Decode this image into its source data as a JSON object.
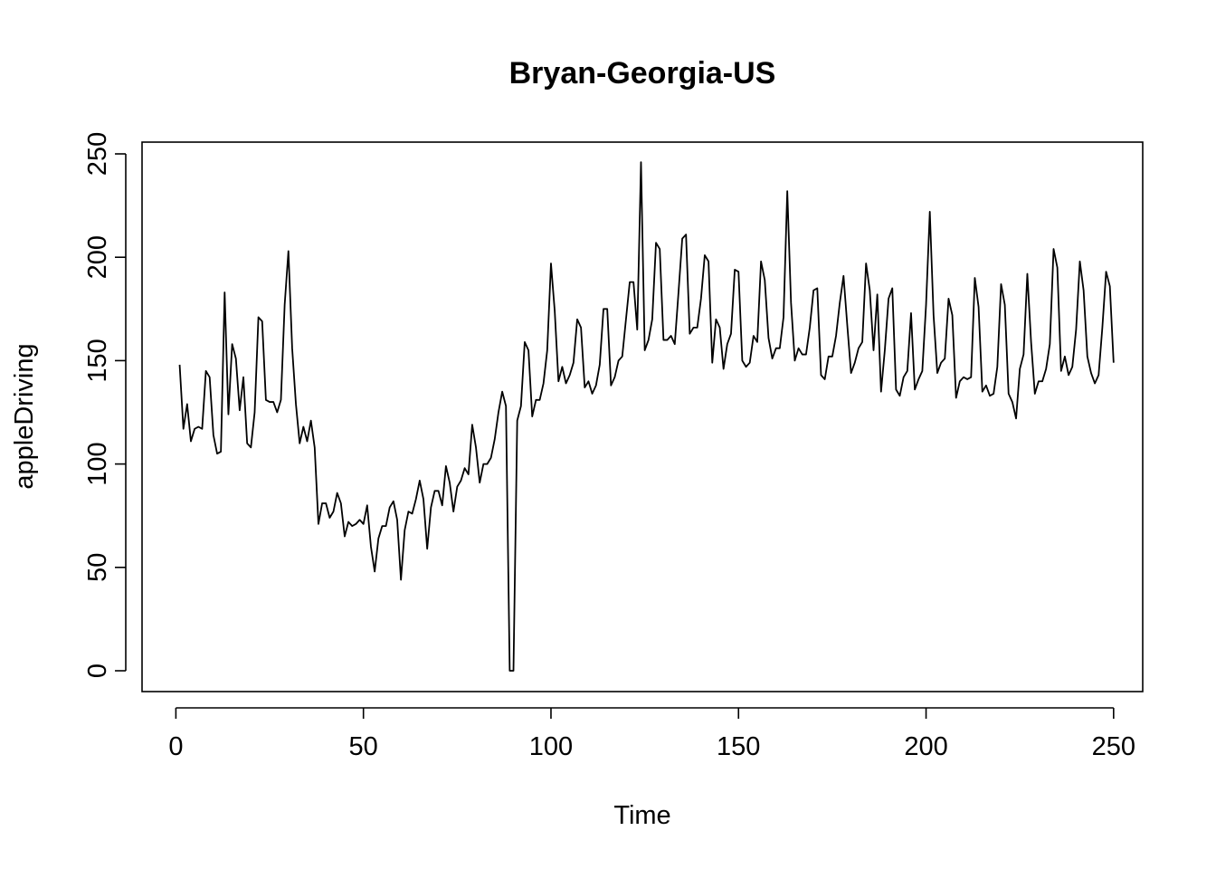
{
  "chart_data": {
    "type": "line",
    "title": "Bryan-Georgia-US",
    "xlabel": "Time",
    "ylabel": "appleDriving",
    "xlim": [
      1,
      248
    ],
    "ylim": [
      0,
      246
    ],
    "x_ticks": [
      0,
      50,
      100,
      150,
      200,
      250
    ],
    "y_ticks": [
      0,
      50,
      100,
      150,
      200,
      250
    ],
    "grid": false,
    "legend": "none",
    "line_color": "#000000",
    "series": [
      {
        "x_start": 1,
        "values": [
          148,
          117,
          129,
          111,
          117,
          118,
          117,
          145,
          142,
          114,
          105,
          106,
          183,
          124,
          158,
          151,
          126,
          142,
          110,
          108,
          125,
          171,
          169,
          131,
          130,
          130,
          125,
          131,
          177,
          203,
          156,
          129,
          110,
          118,
          111,
          121,
          108,
          71,
          81,
          81,
          74,
          77,
          86,
          81,
          65,
          72,
          70,
          71,
          73,
          71,
          80,
          60,
          48,
          64,
          70,
          70,
          79,
          82,
          73,
          44,
          68,
          77,
          76,
          83,
          92,
          83,
          59,
          79,
          87,
          87,
          80,
          99,
          91,
          77,
          89,
          92,
          98,
          95,
          119,
          108,
          91,
          100,
          100,
          103,
          112,
          125,
          135,
          128,
          0,
          0,
          121,
          128,
          159,
          155,
          123,
          131,
          131,
          139,
          155,
          197,
          174,
          140,
          147,
          139,
          143,
          149,
          170,
          166,
          137,
          140,
          134,
          138,
          148,
          175,
          175,
          138,
          142,
          150,
          152,
          170,
          188,
          188,
          165,
          246,
          155,
          160,
          170,
          207,
          204,
          160,
          160,
          162,
          158,
          183,
          209,
          211,
          163,
          166,
          166,
          180,
          201,
          198,
          149,
          170,
          166,
          146,
          158,
          163,
          194,
          193,
          150,
          147,
          149,
          162,
          159,
          198,
          189,
          161,
          151,
          156,
          156,
          171,
          232,
          178,
          150,
          156,
          153,
          153,
          166,
          184,
          185,
          143,
          141,
          152,
          152,
          162,
          178,
          191,
          167,
          144,
          149,
          156,
          159,
          197,
          184,
          155,
          182,
          135,
          155,
          180,
          185,
          136,
          133,
          142,
          145,
          173,
          136,
          141,
          145,
          177,
          222,
          172,
          144,
          149,
          151,
          180,
          172,
          132,
          140,
          142,
          141,
          142,
          190,
          176,
          135,
          138,
          133,
          134,
          147,
          187,
          177,
          134,
          130,
          122,
          146,
          153,
          192,
          159,
          134,
          140,
          140,
          146,
          158,
          204,
          195,
          145,
          152,
          143,
          147,
          165,
          198,
          184,
          152,
          144,
          139,
          143,
          166,
          193,
          186,
          149
        ]
      }
    ]
  }
}
